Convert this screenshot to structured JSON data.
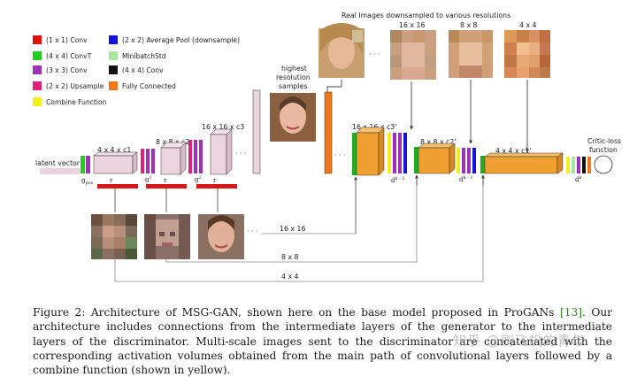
{
  "legend": [
    {
      "color": "#e01010",
      "label": "(1 x 1) Conv"
    },
    {
      "color": "#22cc22",
      "label": "(4 x 4) ConvT"
    },
    {
      "color": "#a030b8",
      "label": "(3 x 3) Conv"
    },
    {
      "color": "#e0207a",
      "label": "(2 x 2) Upsample"
    },
    {
      "color": "#f0f020",
      "label": "Combine Function"
    },
    {
      "color": "#1414d8",
      "label": "(2 x 2) Average Pool (downsample)"
    },
    {
      "color": "#a8e6a0",
      "label": "MinibatchStd"
    },
    {
      "color": "#111111",
      "label": "(4 x 4) Conv"
    },
    {
      "color": "#f07818",
      "label": "Fully Connected"
    }
  ],
  "diagram": {
    "real_images_title": "Real Images downsampled to various resolutions",
    "highest_resolution_label": "highest\nresolution\nsamples",
    "latent_vector": "latent vector",
    "g_pos": "g",
    "g_pos_sub": "pos",
    "gen_block1": "4 x 4 x c1",
    "gen_block2": "8 x 8 x c2",
    "gen_block3": "16 x 16 x c3",
    "g1": "g",
    "g1_sup": "1",
    "g2": "g",
    "g2_sup": "2",
    "r_label": "r",
    "dots": "· · ·",
    "res_16": "16 x 16",
    "res_8": "8 x 8",
    "res_4": "4 x 4",
    "disc_block1": "16 x 16 x c3'",
    "disc_block2": "8 x 8 x c2'",
    "disc_block3": "4 x 4 x c1'",
    "d_k2": "d",
    "d_k2_sup": "k - 2",
    "d_k1": "d",
    "d_k1_sup": "k - 1",
    "d_k": "d",
    "d_k_sup": "k",
    "critic_label": "Critic-loss\nfunction",
    "line_16": "16 x 16",
    "line_8": "8 x 8",
    "line_4": "4 x 4"
  },
  "caption": {
    "prefix": "Figure 2: Architecture of MSG-GAN, shown here on the base model proposed in ProGANs ",
    "ref": "[13]",
    "suffix": ". Our architecture includes connections from the intermediate layers of the generator to the intermediate layers of the discriminator. Multi-scale images sent to the discriminator are concatenated with the corresponding activation volumes obtained from the main path of convolutional layers followed by a combine function (shown in yellow)."
  },
  "watermark": "知乎 @刷飞机的青年",
  "colors": {
    "gen_block": "#ecd4de",
    "disc_block": "#f0a030",
    "red_bar": "#d81818",
    "line": "#8a8a8a"
  }
}
